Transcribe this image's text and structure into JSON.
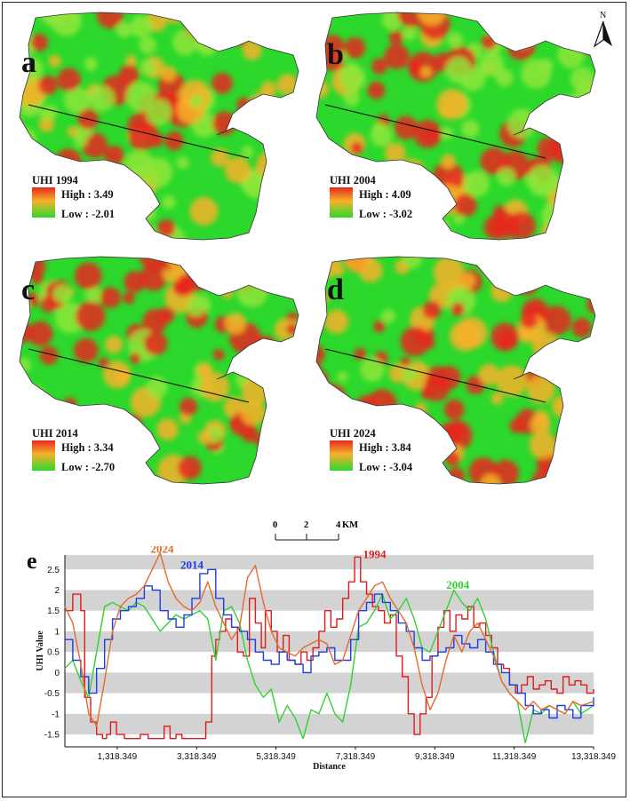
{
  "north_arrow": {
    "letter": "N"
  },
  "panels": [
    {
      "id": "a",
      "label": "a",
      "legend_title": "UHI 1994",
      "high": "High : 3.49",
      "low": "Low : -2.01",
      "intensity": 0.35
    },
    {
      "id": "b",
      "label": "b",
      "legend_title": "UHI 2004",
      "high": "High : 4.09",
      "low": "Low : -3.02",
      "intensity": 0.5
    },
    {
      "id": "c",
      "label": "c",
      "legend_title": "UHI 2014",
      "high": "High : 3.34",
      "low": "Low : -2.70",
      "intensity": 0.7
    },
    {
      "id": "d",
      "label": "d",
      "legend_title": "UHI 2024",
      "high": "High : 3.84",
      "low": "Low : -3.04",
      "intensity": 0.85
    }
  ],
  "legend_colors": {
    "high": "#e8261f",
    "mid": "#f7b22a",
    "low": "#2bd82b"
  },
  "scale_bar": {
    "ticks": [
      "0",
      "2",
      "4"
    ],
    "unit": "KM"
  },
  "chart_panel_label": "e",
  "chart_data": {
    "type": "line",
    "xlabel": "Distance",
    "ylabel": "UHI Value",
    "xlim": [
      0,
      13318.349
    ],
    "ylim": [
      -1.8,
      2.85
    ],
    "x_ticks": [
      1318.349,
      3318.349,
      5318.349,
      7318.349,
      9318.349,
      11318.349,
      13318.349
    ],
    "x_tick_labels": [
      "1,318.349",
      "3,318.349",
      "5,318.349",
      "7,318.349",
      "9,318.349",
      "11,318.349",
      "13,318.349"
    ],
    "y_ticks": [
      -1.5,
      -1,
      -0.5,
      0,
      0.5,
      1,
      1.5,
      2,
      2.5
    ],
    "y_tick_labels": [
      "-1.5",
      "-1",
      "-0.5",
      "0",
      "0.5",
      "1",
      "1.5",
      "2",
      "2.5"
    ],
    "grey_bands": [
      [
        -1.5,
        -1.0
      ],
      [
        -0.5,
        0.0
      ],
      [
        0.5,
        1.0
      ],
      [
        1.5,
        2.0
      ],
      [
        2.5,
        2.85
      ]
    ],
    "series": [
      {
        "name": "1994",
        "color": "#e11b1b",
        "x": [
          0,
          200,
          300,
          400,
          500,
          650,
          800,
          950,
          1050,
          1150,
          1300,
          1500,
          1700,
          1900,
          2100,
          2300,
          2500,
          2650,
          2800,
          2950,
          3100,
          3250,
          3400,
          3550,
          3700,
          3800,
          3900,
          4050,
          4200,
          4350,
          4500,
          4650,
          4800,
          4950,
          5050,
          5200,
          5350,
          5500,
          5650,
          5800,
          5950,
          6100,
          6250,
          6400,
          6550,
          6700,
          6850,
          7000,
          7150,
          7300,
          7450,
          7600,
          7750,
          7900,
          8050,
          8200,
          8350,
          8500,
          8650,
          8800,
          8950,
          9100,
          9250,
          9400,
          9550,
          9700,
          9850,
          10000,
          10150,
          10300,
          10450,
          10600,
          10750,
          10900,
          11050,
          11200,
          11350,
          11500,
          11650,
          11800,
          11950,
          12100,
          12250,
          12400,
          12550,
          12700,
          12850,
          13000,
          13150,
          13318
        ],
        "y": [
          1.5,
          1.9,
          1.9,
          1.5,
          -0.6,
          -1.2,
          -1.5,
          -1.6,
          -1.5,
          -1.2,
          -1.5,
          -1.6,
          -1.6,
          -1.5,
          -1.6,
          -1.6,
          -1.3,
          -1.6,
          -1.5,
          -1.6,
          -1.6,
          -1.6,
          -1.6,
          -1.2,
          0.4,
          0.8,
          1.0,
          1.3,
          1.1,
          0.5,
          0.4,
          1.8,
          1.2,
          0.6,
          1.5,
          1.0,
          0.5,
          0.9,
          0.3,
          0.2,
          0.5,
          0.3,
          0.6,
          1.0,
          1.5,
          1.1,
          1.3,
          1.8,
          2.2,
          2.8,
          2.2,
          1.9,
          1.6,
          1.5,
          1.2,
          1.4,
          0.4,
          -0.1,
          -1.0,
          -1.5,
          -1.0,
          -0.6,
          0.4,
          1.1,
          1.5,
          1.0,
          1.4,
          1.3,
          1.6,
          1.1,
          1.2,
          0.9,
          0.6,
          0.2,
          0.1,
          -0.3,
          -0.5,
          -0.3,
          -0.1,
          -0.4,
          -0.3,
          -0.2,
          -0.4,
          -0.5,
          -0.1,
          -0.3,
          -0.2,
          -0.3,
          -0.5,
          -0.4
        ]
      },
      {
        "name": "2004",
        "color": "#33d133",
        "x": [
          0,
          200,
          400,
          600,
          800,
          1000,
          1200,
          1400,
          1600,
          1800,
          2000,
          2200,
          2400,
          2600,
          2800,
          3000,
          3200,
          3400,
          3600,
          3800,
          4000,
          4200,
          4400,
          4600,
          4800,
          5000,
          5200,
          5400,
          5600,
          5800,
          6000,
          6200,
          6400,
          6600,
          6800,
          7000,
          7200,
          7400,
          7600,
          7800,
          8000,
          8200,
          8400,
          8600,
          8800,
          9000,
          9200,
          9400,
          9600,
          9800,
          10000,
          10200,
          10400,
          10600,
          10800,
          11000,
          11200,
          11400,
          11600,
          11800,
          12000,
          12200,
          12400,
          12600,
          12800,
          13000,
          13318
        ],
        "y": [
          0.1,
          0.3,
          -0.2,
          -0.6,
          0.5,
          1.6,
          1.7,
          1.6,
          1.5,
          1.7,
          1.6,
          1.3,
          1.0,
          1.2,
          1.4,
          1.3,
          1.4,
          1.5,
          1.3,
          0.3,
          1.5,
          1.6,
          1.2,
          0.3,
          -0.3,
          -0.6,
          -0.4,
          -1.2,
          -0.8,
          -1.1,
          -1.6,
          -0.9,
          -1.0,
          -0.5,
          -1.0,
          -1.2,
          -0.3,
          1.1,
          1.2,
          1.5,
          1.9,
          1.3,
          1.5,
          1.8,
          1.3,
          0.6,
          0.5,
          1.0,
          1.5,
          2.0,
          1.7,
          1.5,
          1.8,
          1.3,
          0.5,
          -0.2,
          -0.5,
          -0.7,
          -1.7,
          -0.9,
          -1.0,
          -0.8,
          -0.9,
          -1.0,
          -0.7,
          -1.0,
          -0.8
        ]
      },
      {
        "name": "2014",
        "color": "#1a3fe6",
        "x": [
          0,
          200,
          400,
          600,
          800,
          1000,
          1200,
          1400,
          1600,
          1800,
          2000,
          2200,
          2400,
          2600,
          2800,
          3000,
          3200,
          3400,
          3600,
          3800,
          4000,
          4200,
          4400,
          4600,
          4800,
          5000,
          5200,
          5400,
          5600,
          5800,
          6000,
          6200,
          6400,
          6600,
          6800,
          7000,
          7200,
          7400,
          7600,
          7800,
          8000,
          8200,
          8400,
          8600,
          8800,
          9000,
          9200,
          9400,
          9600,
          9800,
          10000,
          10200,
          10400,
          10600,
          10800,
          11000,
          11200,
          11400,
          11600,
          11800,
          12000,
          12200,
          12400,
          12600,
          12800,
          13000,
          13318
        ],
        "y": [
          0.8,
          0.3,
          -0.1,
          -0.5,
          0.1,
          0.8,
          1.3,
          1.5,
          1.6,
          1.8,
          2.1,
          2.0,
          1.5,
          1.3,
          1.1,
          1.4,
          1.8,
          2.4,
          2.5,
          1.8,
          1.4,
          1.1,
          1.0,
          0.8,
          0.5,
          0.3,
          0.2,
          0.5,
          0.3,
          0.2,
          0.0,
          0.4,
          0.5,
          0.6,
          0.3,
          0.3,
          0.8,
          1.5,
          1.7,
          1.9,
          1.7,
          1.5,
          1.2,
          1.0,
          0.6,
          0.3,
          0.4,
          0.5,
          0.6,
          0.9,
          0.7,
          0.6,
          0.8,
          0.5,
          0.2,
          0.0,
          -0.3,
          -0.5,
          -0.8,
          -1.0,
          -0.9,
          -1.1,
          -0.8,
          -0.9,
          -1.1,
          -0.8,
          -0.6
        ]
      },
      {
        "name": "2024",
        "color": "#e66a2c",
        "x": [
          0,
          200,
          400,
          600,
          800,
          1000,
          1200,
          1400,
          1600,
          1800,
          2000,
          2200,
          2400,
          2600,
          2800,
          3000,
          3200,
          3400,
          3600,
          3800,
          4000,
          4200,
          4400,
          4600,
          4800,
          5000,
          5200,
          5400,
          5600,
          5800,
          6000,
          6200,
          6400,
          6600,
          6800,
          7000,
          7200,
          7400,
          7600,
          7800,
          8000,
          8200,
          8400,
          8600,
          8800,
          9000,
          9200,
          9400,
          9600,
          9800,
          10000,
          10200,
          10400,
          10600,
          10800,
          11000,
          11200,
          11400,
          11600,
          11800,
          12000,
          12200,
          12400,
          12600,
          12800,
          13000,
          13318
        ],
        "y": [
          1.6,
          1.2,
          0.2,
          -1.0,
          -1.3,
          -0.2,
          1.0,
          1.6,
          1.8,
          1.9,
          2.1,
          2.5,
          2.9,
          2.2,
          1.8,
          1.6,
          1.5,
          1.7,
          2.2,
          1.6,
          1.2,
          0.8,
          1.1,
          2.3,
          2.6,
          1.7,
          1.0,
          0.6,
          0.5,
          0.4,
          0.6,
          0.7,
          0.8,
          0.7,
          0.2,
          0.3,
          0.9,
          1.5,
          1.8,
          2.1,
          2.2,
          1.8,
          1.5,
          1.2,
          0.6,
          -0.3,
          -0.9,
          -0.5,
          0.3,
          0.9,
          0.5,
          1.0,
          1.2,
          0.8,
          0.4,
          -0.2,
          -0.5,
          -0.7,
          -0.9,
          -0.7,
          -0.9,
          -0.8,
          -0.9,
          -1.0,
          -0.7,
          -0.8,
          -0.7
        ]
      }
    ]
  }
}
